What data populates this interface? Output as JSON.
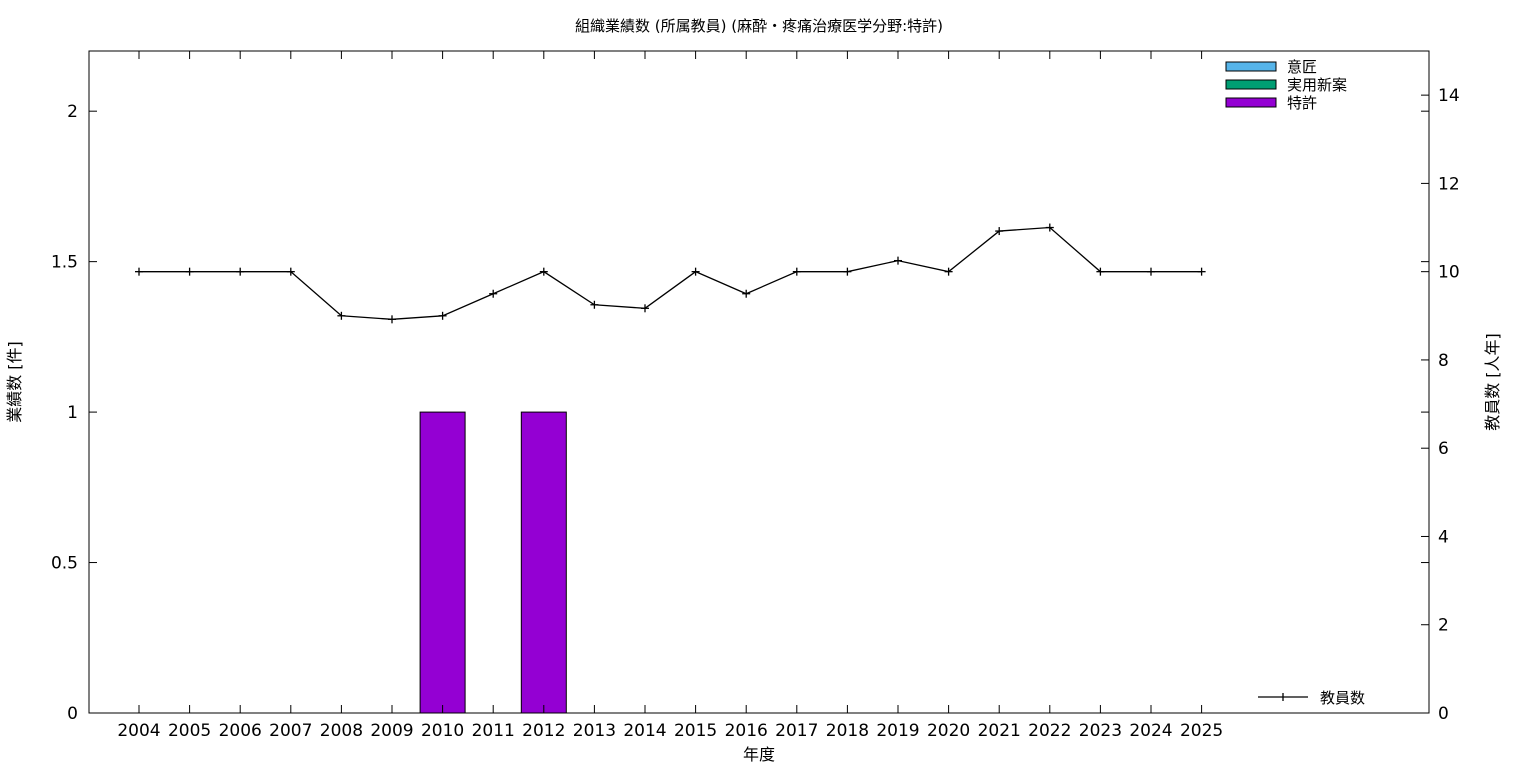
{
  "chart_data": {
    "type": "bar",
    "title": "組織業績数 (所属教員) (麻酔・疼痛治療医学分野:特許)",
    "xlabel": "年度",
    "ylabel_left": "業績数 [件]",
    "ylabel_right": "教員数 [人年]",
    "categories": [
      "2004",
      "2005",
      "2006",
      "2007",
      "2008",
      "2009",
      "2010",
      "2011",
      "2012",
      "2013",
      "2014",
      "2015",
      "2016",
      "2017",
      "2018",
      "2019",
      "2020",
      "2021",
      "2022",
      "2023",
      "2024",
      "2025"
    ],
    "ylim_left": [
      0,
      2.2
    ],
    "yticks_left": [
      "0",
      "0.5",
      "1",
      "1.5",
      "2"
    ],
    "ylim_right": [
      0,
      15
    ],
    "yticks_right": [
      "0",
      "2",
      "4",
      "6",
      "8",
      "10",
      "12",
      "14"
    ],
    "bar_series": [
      {
        "name": "意匠",
        "color": "#56b4e9",
        "values": [
          0,
          0,
          0,
          0,
          0,
          0,
          0,
          0,
          0,
          0,
          0,
          0,
          0,
          0,
          0,
          0,
          0,
          0,
          0,
          0,
          0,
          0
        ]
      },
      {
        "name": "実用新案",
        "color": "#009e73",
        "values": [
          0,
          0,
          0,
          0,
          0,
          0,
          0,
          0,
          0,
          0,
          0,
          0,
          0,
          0,
          0,
          0,
          0,
          0,
          0,
          0,
          0,
          0
        ]
      },
      {
        "name": "特許",
        "color": "#9400d3",
        "values": [
          0,
          0,
          0,
          0,
          0,
          0,
          1,
          0,
          1,
          0,
          0,
          0,
          0,
          0,
          0,
          0,
          0,
          0,
          0,
          0,
          0,
          0
        ]
      }
    ],
    "line_series": {
      "name": "教員数",
      "color": "#000000",
      "values": [
        10,
        10,
        10,
        10,
        9,
        8.92,
        9,
        9.5,
        10,
        9.25,
        9.17,
        10,
        9.5,
        10,
        10,
        10.25,
        10,
        10.92,
        11,
        10,
        10,
        10
      ]
    },
    "legend_bars_position": "top-right",
    "legend_line_position": "bottom-right",
    "grid": false
  }
}
